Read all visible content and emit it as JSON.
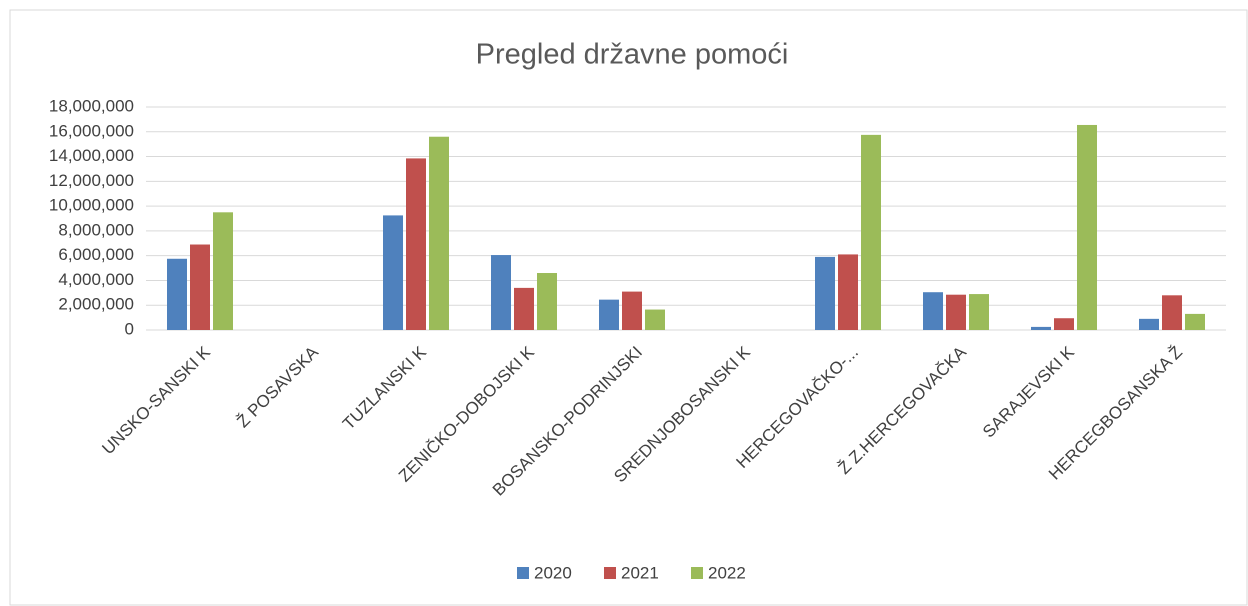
{
  "chart_data": {
    "type": "bar",
    "title": "Pregled državne pomoći",
    "categories": [
      "UNSKO-SANSKI K",
      "Ž POSAVSKA",
      "TUZLANSKI K",
      "ZENIČKO-DOBOJSKI K",
      "BOSANSKO-PODRINJSKI",
      "SREDNJOBOSANSKI K",
      "HERCEGOVAČKO-...",
      "Ž Z.HERCEGOVAČKA",
      "SARAJEVSKI K",
      "HERCEGBOSANSKA Ž"
    ],
    "series": [
      {
        "name": "2020",
        "color": "#4f81bd",
        "values": [
          5750000,
          0,
          9250000,
          6050000,
          2450000,
          0,
          5900000,
          3050000,
          250000,
          900000
        ]
      },
      {
        "name": "2021",
        "color": "#c0504d",
        "values": [
          6900000,
          0,
          13850000,
          3400000,
          3100000,
          0,
          6100000,
          2850000,
          950000,
          2800000
        ]
      },
      {
        "name": "2022",
        "color": "#9bbb59",
        "values": [
          9500000,
          0,
          15600000,
          4600000,
          1650000,
          0,
          15750000,
          2900000,
          16550000,
          1300000
        ]
      }
    ],
    "ylim": [
      0,
      18000000
    ],
    "yticks": [
      0,
      {
        "value": 2000000,
        "label": "2,000,000"
      },
      {
        "value": 4000000,
        "label": "4,000,000"
      },
      {
        "value": 6000000,
        "label": "6,000,000"
      },
      {
        "value": 8000000,
        "label": "8,000,000"
      },
      {
        "value": 10000000,
        "label": "10,000,000"
      },
      {
        "value": 12000000,
        "label": "12,000,000"
      },
      {
        "value": 14000000,
        "label": "14,000,000"
      },
      {
        "value": 16000000,
        "label": "16,000,000"
      },
      {
        "value": 18000000,
        "label": "18,000,000"
      }
    ],
    "grid": true,
    "legend": "bottom"
  }
}
